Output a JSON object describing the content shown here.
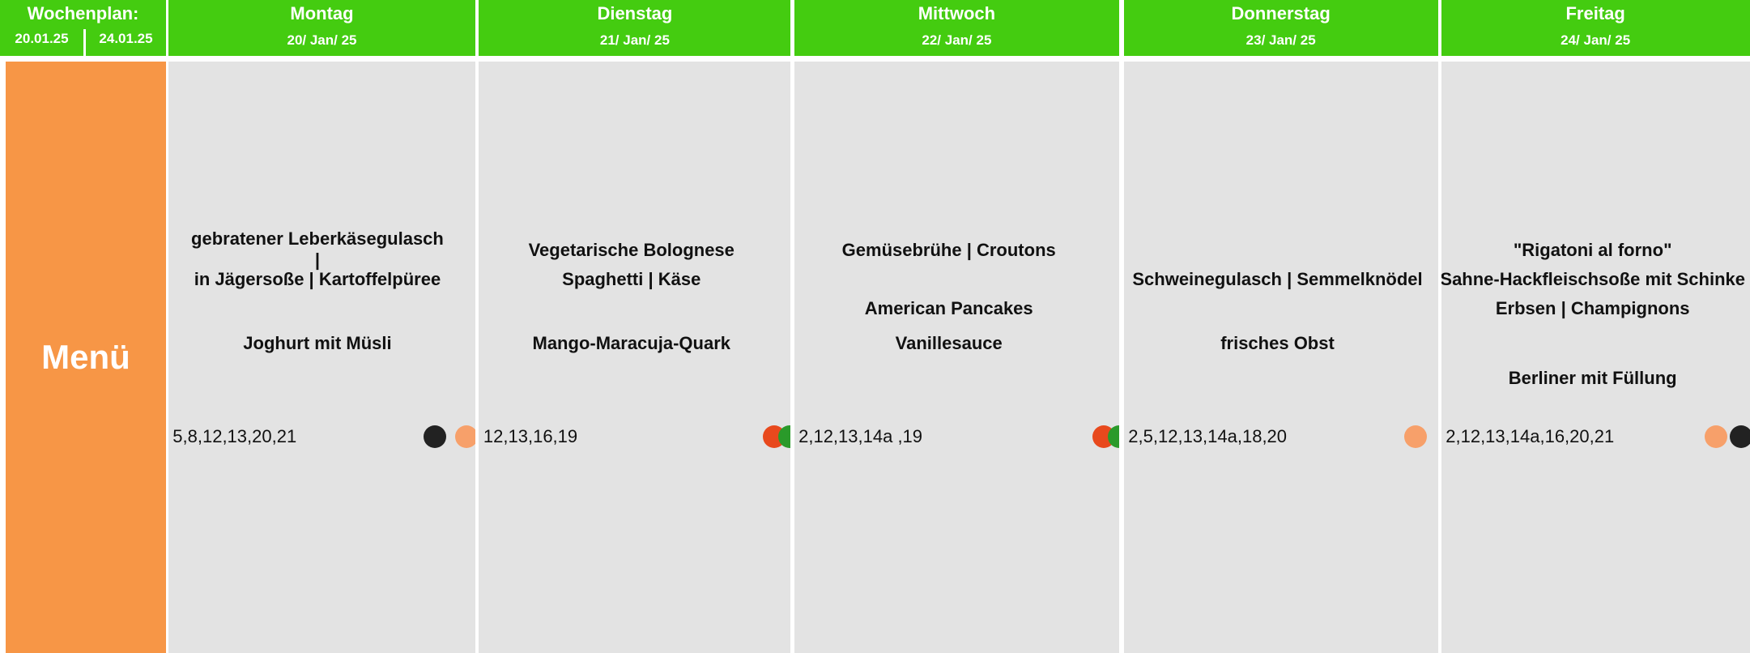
{
  "header": {
    "title": "Wochenplan:",
    "start": "20.01.25",
    "end": "24.01.25"
  },
  "menu_label": "Menü",
  "days": [
    {
      "name": "Montag",
      "date": "20/ Jan/ 25",
      "lines": [
        "gebratener Leberkäsegulasch",
        "|",
        "in Jägersoße | Kartoffelpüree",
        "Joghurt mit Müsli"
      ],
      "allergens": "5,8,12,13,20,21"
    },
    {
      "name": "Dienstag",
      "date": "21/ Jan/ 25",
      "lines": [
        "Vegetarische Bolognese",
        "Spaghetti | Käse",
        "Mango-Maracuja-Quark"
      ],
      "allergens": "12,13,16,19"
    },
    {
      "name": "Mittwoch",
      "date": "22/ Jan/ 25",
      "lines": [
        "Gemüsebrühe | Croutons",
        "American Pancakes",
        "Vanillesauce"
      ],
      "allergens": "2,12,13,14a ,19"
    },
    {
      "name": "Donnerstag",
      "date": "23/ Jan/ 25",
      "lines": [
        "Schweinegulasch | Semmelknödel",
        "frisches Obst"
      ],
      "allergens": "2,5,12,13,14a,18,20"
    },
    {
      "name": "Freitag",
      "date": "24/ Jan/ 25",
      "lines": [
        "\"Rigatoni al forno\"",
        "Sahne-Hackfleischsoße mit Schinke",
        "Erbsen | Champignons",
        "Berliner mit Füllung"
      ],
      "allergens": "2,12,13,14a,16,20,21"
    }
  ]
}
